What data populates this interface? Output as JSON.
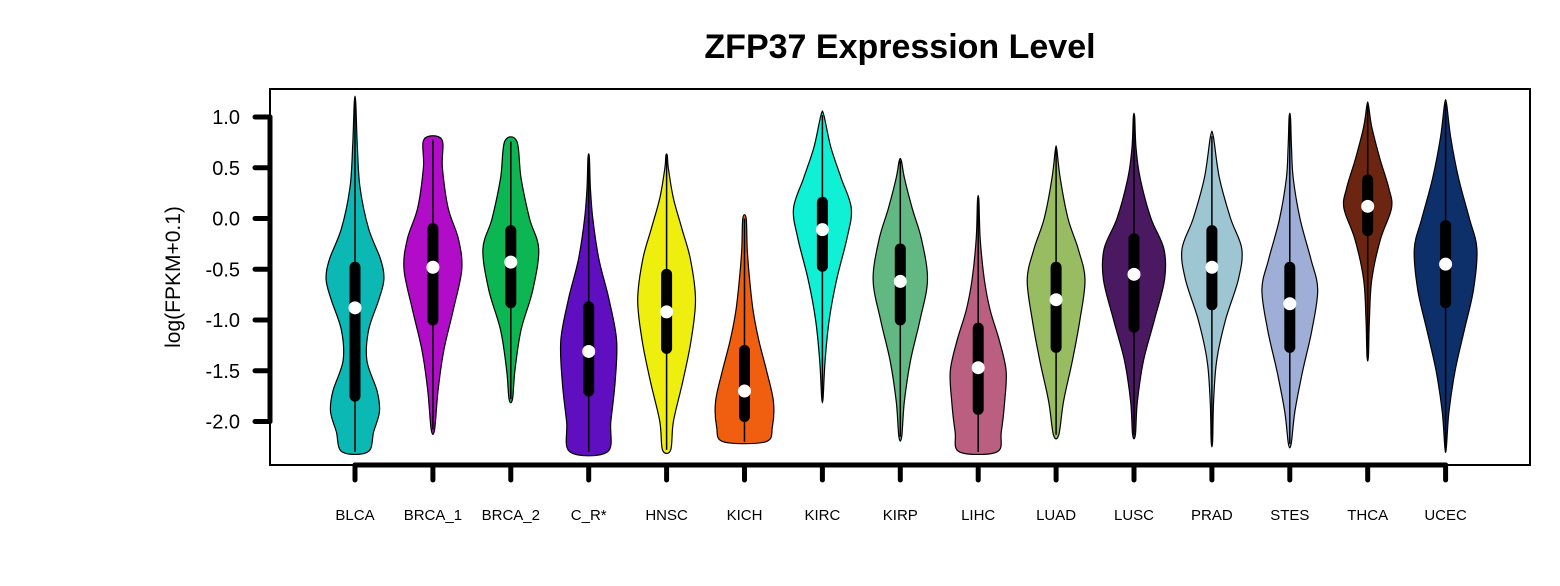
{
  "chart_data": {
    "type": "violin",
    "title": "ZFP37 Expression Level",
    "xlabel": "",
    "ylabel": "log(FPKM+0.1)",
    "ylim": [
      -2.45,
      1.27
    ],
    "yticks": [
      1.0,
      0.5,
      0.0,
      -0.5,
      -1.0,
      -1.5,
      -2.0
    ],
    "ytick_labels": [
      "1.0",
      "0.5",
      "0.0",
      "-0.5",
      "-1.0",
      "-1.5",
      "-2.0"
    ],
    "grid": false,
    "legend": "none",
    "categories": [
      "BLCA",
      "BRCA_1",
      "BRCA_2",
      "C_R*",
      "HNSC",
      "KICH",
      "KIRC",
      "KIRP",
      "LIHC",
      "LUAD",
      "LUSC",
      "PRAD",
      "STES",
      "THCA",
      "UCEC"
    ],
    "colors": [
      "#0BB8B3",
      "#B10DC9",
      "#0BB653",
      "#5F0FBF",
      "#EEEE0F",
      "#F05F0F",
      "#0FF0D4",
      "#62B883",
      "#BA5F7F",
      "#98BC62",
      "#4B1862",
      "#9EC6D2",
      "#9EAED6",
      "#6B2510",
      "#0D2F6A"
    ],
    "series": [
      {
        "min": -2.3,
        "max": 1.15,
        "q1": -1.75,
        "q3": -0.48,
        "median": -0.88,
        "profile": [
          [
            -2.3,
            0.38
          ],
          [
            -2.1,
            0.55
          ],
          [
            -1.9,
            0.72
          ],
          [
            -1.7,
            0.65
          ],
          [
            -1.4,
            0.35
          ],
          [
            -1.1,
            0.4
          ],
          [
            -0.8,
            0.7
          ],
          [
            -0.6,
            0.85
          ],
          [
            -0.4,
            0.75
          ],
          [
            -0.1,
            0.4
          ],
          [
            0.3,
            0.15
          ],
          [
            0.7,
            0.07
          ],
          [
            1.15,
            0.02
          ]
        ]
      },
      {
        "min": -2.08,
        "max": 0.78,
        "q1": -1.0,
        "q3": -0.1,
        "median": -0.48,
        "profile": [
          [
            -2.08,
            0.05
          ],
          [
            -1.7,
            0.15
          ],
          [
            -1.3,
            0.32
          ],
          [
            -0.9,
            0.6
          ],
          [
            -0.5,
            0.85
          ],
          [
            -0.2,
            0.75
          ],
          [
            0.1,
            0.45
          ],
          [
            0.5,
            0.28
          ],
          [
            0.78,
            0.26
          ]
        ]
      },
      {
        "min": -1.78,
        "max": 0.76,
        "q1": -0.83,
        "q3": -0.12,
        "median": -0.43,
        "profile": [
          [
            -1.78,
            0.05
          ],
          [
            -1.5,
            0.12
          ],
          [
            -1.1,
            0.3
          ],
          [
            -0.7,
            0.65
          ],
          [
            -0.3,
            0.82
          ],
          [
            0.0,
            0.55
          ],
          [
            0.4,
            0.3
          ],
          [
            0.76,
            0.18
          ]
        ]
      },
      {
        "min": -2.3,
        "max": 0.6,
        "q1": -1.7,
        "q3": -0.87,
        "median": -1.31,
        "profile": [
          [
            -2.3,
            0.55
          ],
          [
            -2.0,
            0.65
          ],
          [
            -1.6,
            0.78
          ],
          [
            -1.2,
            0.82
          ],
          [
            -0.8,
            0.6
          ],
          [
            -0.4,
            0.3
          ],
          [
            0.0,
            0.12
          ],
          [
            0.3,
            0.05
          ],
          [
            0.6,
            0.02
          ]
        ]
      },
      {
        "min": -2.28,
        "max": 0.62,
        "q1": -1.28,
        "q3": -0.55,
        "median": -0.92,
        "profile": [
          [
            -2.28,
            0.12
          ],
          [
            -2.0,
            0.2
          ],
          [
            -1.6,
            0.48
          ],
          [
            -1.2,
            0.72
          ],
          [
            -0.8,
            0.85
          ],
          [
            -0.4,
            0.7
          ],
          [
            -0.1,
            0.45
          ],
          [
            0.2,
            0.2
          ],
          [
            0.5,
            0.05
          ],
          [
            0.62,
            0.02
          ]
        ]
      },
      {
        "min": -2.2,
        "max": 0.0,
        "q1": -1.95,
        "q3": -1.3,
        "median": -1.7,
        "profile": [
          [
            -2.2,
            0.62
          ],
          [
            -2.05,
            0.82
          ],
          [
            -1.8,
            0.85
          ],
          [
            -1.5,
            0.65
          ],
          [
            -1.2,
            0.42
          ],
          [
            -0.9,
            0.25
          ],
          [
            -0.6,
            0.15
          ],
          [
            -0.3,
            0.08
          ],
          [
            0.0,
            0.05
          ]
        ]
      },
      {
        "min": -1.77,
        "max": 1.02,
        "q1": -0.47,
        "q3": 0.16,
        "median": -0.11,
        "profile": [
          [
            -1.77,
            0.02
          ],
          [
            -1.4,
            0.08
          ],
          [
            -1.0,
            0.2
          ],
          [
            -0.6,
            0.42
          ],
          [
            -0.2,
            0.72
          ],
          [
            0.1,
            0.85
          ],
          [
            0.4,
            0.55
          ],
          [
            0.7,
            0.25
          ],
          [
            1.02,
            0.04
          ]
        ]
      },
      {
        "min": -2.15,
        "max": 0.57,
        "q1": -1.0,
        "q3": -0.3,
        "median": -0.62,
        "profile": [
          [
            -2.15,
            0.04
          ],
          [
            -1.8,
            0.12
          ],
          [
            -1.4,
            0.3
          ],
          [
            -1.0,
            0.58
          ],
          [
            -0.6,
            0.8
          ],
          [
            -0.2,
            0.62
          ],
          [
            0.1,
            0.35
          ],
          [
            0.4,
            0.12
          ],
          [
            0.57,
            0.03
          ]
        ]
      },
      {
        "min": -2.3,
        "max": 0.18,
        "q1": -1.88,
        "q3": -1.08,
        "median": -1.47,
        "profile": [
          [
            -2.3,
            0.55
          ],
          [
            -2.1,
            0.68
          ],
          [
            -1.8,
            0.78
          ],
          [
            -1.5,
            0.82
          ],
          [
            -1.2,
            0.62
          ],
          [
            -0.9,
            0.35
          ],
          [
            -0.6,
            0.18
          ],
          [
            -0.2,
            0.06
          ],
          [
            0.18,
            0.02
          ]
        ]
      },
      {
        "min": -2.13,
        "max": 0.68,
        "q1": -1.27,
        "q3": -0.48,
        "median": -0.8,
        "profile": [
          [
            -2.13,
            0.08
          ],
          [
            -1.8,
            0.22
          ],
          [
            -1.4,
            0.48
          ],
          [
            -1.0,
            0.7
          ],
          [
            -0.6,
            0.85
          ],
          [
            -0.3,
            0.65
          ],
          [
            0.0,
            0.35
          ],
          [
            0.4,
            0.12
          ],
          [
            0.68,
            0.02
          ]
        ]
      },
      {
        "min": -2.13,
        "max": 1.0,
        "q1": -1.07,
        "q3": -0.2,
        "median": -0.55,
        "profile": [
          [
            -2.13,
            0.04
          ],
          [
            -1.8,
            0.1
          ],
          [
            -1.4,
            0.28
          ],
          [
            -1.0,
            0.6
          ],
          [
            -0.6,
            0.9
          ],
          [
            -0.3,
            0.88
          ],
          [
            0.0,
            0.5
          ],
          [
            0.4,
            0.18
          ],
          [
            0.7,
            0.06
          ],
          [
            1.0,
            0.02
          ]
        ]
      },
      {
        "min": -2.2,
        "max": 0.81,
        "q1": -0.85,
        "q3": -0.12,
        "median": -0.48,
        "profile": [
          [
            -2.2,
            0.02
          ],
          [
            -1.8,
            0.05
          ],
          [
            -1.4,
            0.14
          ],
          [
            -1.0,
            0.4
          ],
          [
            -0.6,
            0.78
          ],
          [
            -0.3,
            0.88
          ],
          [
            0.0,
            0.55
          ],
          [
            0.4,
            0.22
          ],
          [
            0.81,
            0.04
          ]
        ]
      },
      {
        "min": -2.22,
        "max": 1.0,
        "q1": -1.27,
        "q3": -0.48,
        "median": -0.84,
        "profile": [
          [
            -2.22,
            0.04
          ],
          [
            -1.9,
            0.15
          ],
          [
            -1.5,
            0.38
          ],
          [
            -1.1,
            0.65
          ],
          [
            -0.7,
            0.82
          ],
          [
            -0.4,
            0.62
          ],
          [
            0.0,
            0.3
          ],
          [
            0.4,
            0.1
          ],
          [
            0.7,
            0.05
          ],
          [
            1.0,
            0.02
          ]
        ]
      },
      {
        "min": -1.36,
        "max": 1.12,
        "q1": -0.12,
        "q3": 0.38,
        "median": 0.12,
        "profile": [
          [
            -1.36,
            0.02
          ],
          [
            -1.0,
            0.05
          ],
          [
            -0.6,
            0.12
          ],
          [
            -0.2,
            0.38
          ],
          [
            0.1,
            0.7
          ],
          [
            0.3,
            0.62
          ],
          [
            0.6,
            0.35
          ],
          [
            0.9,
            0.12
          ],
          [
            1.12,
            0.02
          ]
        ]
      },
      {
        "min": -2.26,
        "max": 1.13,
        "q1": -0.83,
        "q3": -0.07,
        "median": -0.45,
        "profile": [
          [
            -2.26,
            0.02
          ],
          [
            -1.9,
            0.1
          ],
          [
            -1.5,
            0.28
          ],
          [
            -1.1,
            0.55
          ],
          [
            -0.7,
            0.82
          ],
          [
            -0.3,
            0.92
          ],
          [
            0.0,
            0.7
          ],
          [
            0.4,
            0.38
          ],
          [
            0.8,
            0.15
          ],
          [
            1.13,
            0.03
          ]
        ]
      }
    ]
  }
}
